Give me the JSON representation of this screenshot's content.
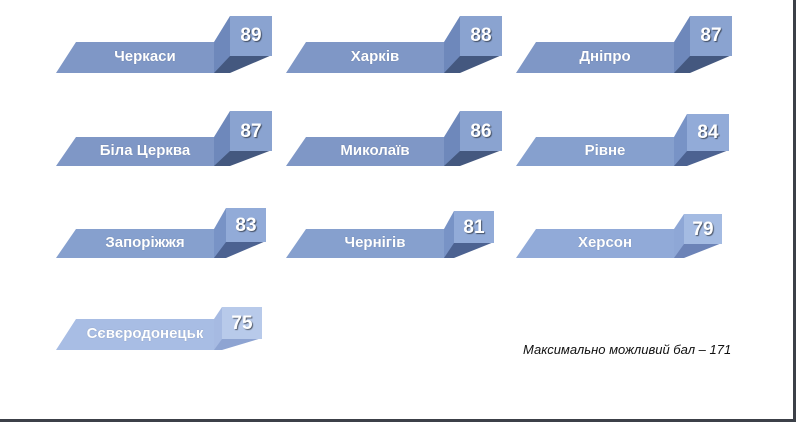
{
  "cities": [
    {
      "name": "Черкаси",
      "score": "89",
      "front": "#7f97c6",
      "side": "#44587f",
      "box": "#8aa3d0",
      "boxDark": "#6e88bb"
    },
    {
      "name": "Харків",
      "score": "88",
      "front": "#7f97c6",
      "side": "#44587f",
      "box": "#8aa3d0",
      "boxDark": "#6e88bb"
    },
    {
      "name": "Дніпро",
      "score": "87",
      "front": "#7f97c6",
      "side": "#44587f",
      "box": "#8aa3d0",
      "boxDark": "#6e88bb"
    },
    {
      "name": "Біла Церква",
      "score": "87",
      "front": "#7f97c6",
      "side": "#44587f",
      "box": "#8aa3d0",
      "boxDark": "#6e88bb"
    },
    {
      "name": "Миколаїв",
      "score": "86",
      "front": "#7f97c6",
      "side": "#44587f",
      "box": "#8aa3d0",
      "boxDark": "#6e88bb"
    },
    {
      "name": "Рівне",
      "score": "84",
      "front": "#86a0ce",
      "side": "#4c6291",
      "box": "#92abd8",
      "boxDark": "#7893c6"
    },
    {
      "name": "Запоріжжя",
      "score": "83",
      "front": "#86a0ce",
      "side": "#4c6291",
      "box": "#92abd8",
      "boxDark": "#7893c6"
    },
    {
      "name": "Чернігів",
      "score": "81",
      "front": "#86a0ce",
      "side": "#4c6291",
      "box": "#92abd8",
      "boxDark": "#7893c6"
    },
    {
      "name": "Херсон",
      "score": "79",
      "front": "#91aad8",
      "side": "#6c83b7",
      "box": "#a4bbe2",
      "boxDark": "#8ea7d6"
    },
    {
      "name": "Сєвєродонецьк",
      "score": "75",
      "front": "#a8bde4",
      "side": "#8ea4d2",
      "box": "#b8caea",
      "boxDark": "#a6bae2"
    }
  ],
  "footnote": "Максимально можливий бал  – 171"
}
